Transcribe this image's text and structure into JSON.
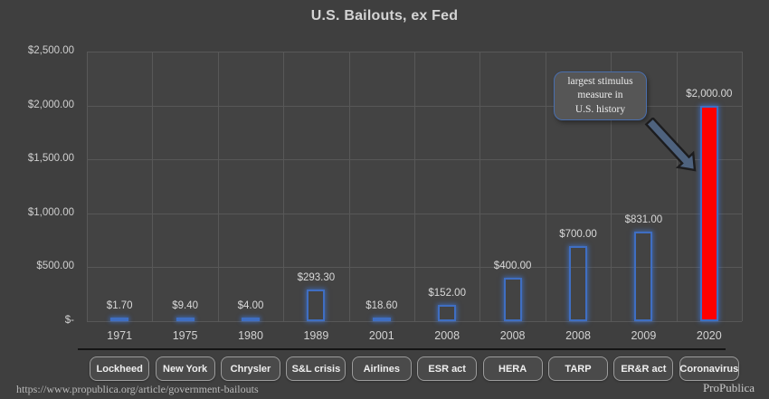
{
  "title": "U.S. Bailouts, ex Fed",
  "colors": {
    "background": "#3f3f3f",
    "plot_background": "#434343",
    "gridline": "#585858",
    "bar_border_blue": "#3f6ec2",
    "highlight_red": "#fe0000",
    "text": "#d9d9d9"
  },
  "chart_data": {
    "type": "bar",
    "title": "U.S. Bailouts, ex Fed",
    "categories": [
      "1971",
      "1975",
      "1980",
      "1989",
      "2001",
      "2008",
      "2008",
      "2008",
      "2009",
      "2020"
    ],
    "values": [
      1.7,
      9.4,
      4.0,
      293.3,
      18.6,
      152.0,
      400.0,
      700.0,
      831.0,
      2000.0
    ],
    "value_labels": [
      "$1.70",
      "$9.40",
      "$4.00",
      "$293.30",
      "$18.60",
      "$152.00",
      "$400.00",
      "$700.00",
      "$831.00",
      "$2,000.00"
    ],
    "highlight_index": 9,
    "ylim": [
      0,
      2500
    ],
    "ytick_values": [
      0,
      500,
      1000,
      1500,
      2000,
      2500
    ],
    "ytick_labels": [
      "$-",
      "$500.00",
      "$1,000.00",
      "$1,500.00",
      "$2,000.00",
      "$2,500.00"
    ],
    "grid": true,
    "legend_position": "none",
    "annotation": "largest stimulus\nmeasure in\nU.S. history"
  },
  "legend_buttons": [
    "Lockheed",
    "New York",
    "Chrysler",
    "S&L crisis",
    "Airlines",
    "ESR act",
    "HERA",
    "TARP",
    "ER&R act",
    "Coronavirus"
  ],
  "footer": {
    "url": "https://www.propublica.org/article/government-bailouts",
    "brand": "ProPublica"
  }
}
